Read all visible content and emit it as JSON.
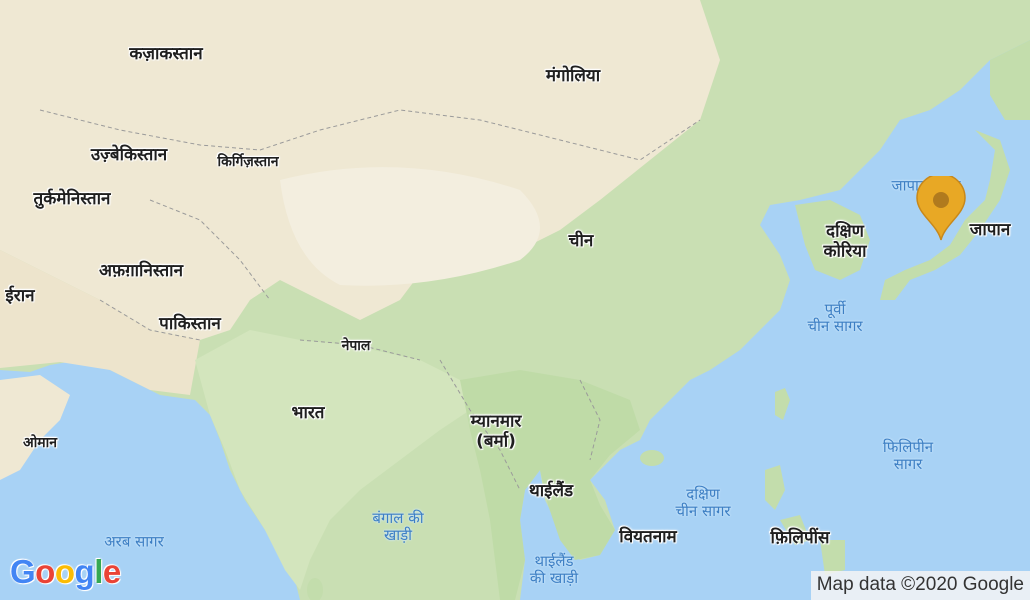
{
  "map": {
    "countries": {
      "kazakhstan": "कज़ाकस्तान",
      "mongolia": "मंगोलिया",
      "uzbekistan": "उज़्बेकिस्तान",
      "kyrgyzstan": "किर्गिज़स्तान",
      "turkmenistan": "तुर्कमेनिस्तान",
      "china": "चीन",
      "south_korea_1": "दक्षिण",
      "south_korea_2": "कोरिया",
      "japan": "जापान",
      "afghanistan": "अफ़ग़ानिस्तान",
      "iran": "ईरान",
      "pakistan": "पाकिस्तान",
      "nepal": "नेपाल",
      "india": "भारत",
      "oman": "ओमान",
      "myanmar_1": "म्यानमार",
      "myanmar_2": "(बर्मा)",
      "thailand": "थाईलैंड",
      "vietnam": "वियतनाम",
      "philippines": "फ़िलिपींस"
    },
    "seas": {
      "sea_of_japan": "जापान सागर",
      "east_china_sea_1": "पूर्वी",
      "east_china_sea_2": "चीन सागर",
      "philippine_sea_1": "फिलिपीन",
      "philippine_sea_2": "सागर",
      "south_china_sea_1": "दक्षिण",
      "south_china_sea_2": "चीन सागर",
      "bay_of_bengal_1": "बंगाल की",
      "bay_of_bengal_2": "खाड़ी",
      "gulf_of_thailand_1": "थाईलैंड",
      "gulf_of_thailand_2": "की खाड़ी",
      "arabian_sea": "अरब सागर"
    },
    "marker": {
      "icon": "map-pin-icon",
      "color": "#e8a825",
      "location": "जापान"
    },
    "logo": "Google",
    "attribution": "Map data ©2020 Google",
    "colors": {
      "water": "#a8d2f5",
      "land_green": "#c5dfb0",
      "land_arid": "#f0ead6",
      "marker": "#e8a825"
    }
  }
}
